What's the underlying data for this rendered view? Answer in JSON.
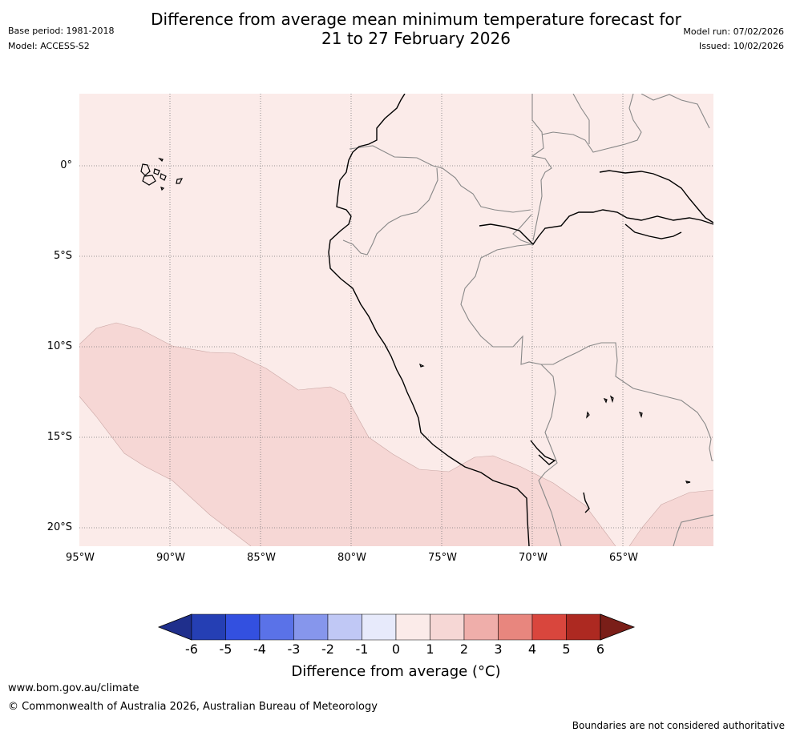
{
  "header": {
    "title_line1": "Difference from average mean minimum temperature forecast for",
    "title_line2": "21 to 27 February 2026",
    "base_period": "Base period: 1981-2018",
    "model": "Model: ACCESS-S2",
    "model_run": "Model run: 07/02/2026",
    "issued": "Issued: 10/02/2026"
  },
  "map": {
    "background_color": "#fbebe9",
    "anomaly_color": "#f6d7d5",
    "lat_labels": [
      "0°",
      "5°S",
      "10°S",
      "15°S",
      "20°S"
    ],
    "lon_labels": [
      "95°W",
      "90°W",
      "85°W",
      "80°W",
      "75°W",
      "70°W",
      "65°W"
    ]
  },
  "colorbar": {
    "colors": [
      "#1f2f8c",
      "#253fb4",
      "#3350e0",
      "#5a72e8",
      "#8696ec",
      "#c0c8f5",
      "#e7eafb",
      "#fbebe9",
      "#f6d7d5",
      "#efaeaa",
      "#e8867e",
      "#d9463d",
      "#ad2921",
      "#7a1e18"
    ],
    "ticks": [
      "-6",
      "-5",
      "-4",
      "-3",
      "-2",
      "-1",
      "0",
      "1",
      "2",
      "3",
      "4",
      "5",
      "6"
    ],
    "label": "Difference from average (°C)"
  },
  "footer": {
    "url": "www.bom.gov.au/climate",
    "copyright": "© Commonwealth of Australia 2026, Australian Bureau of Meteorology",
    "disclaimer": "Boundaries are not considered authoritative"
  }
}
